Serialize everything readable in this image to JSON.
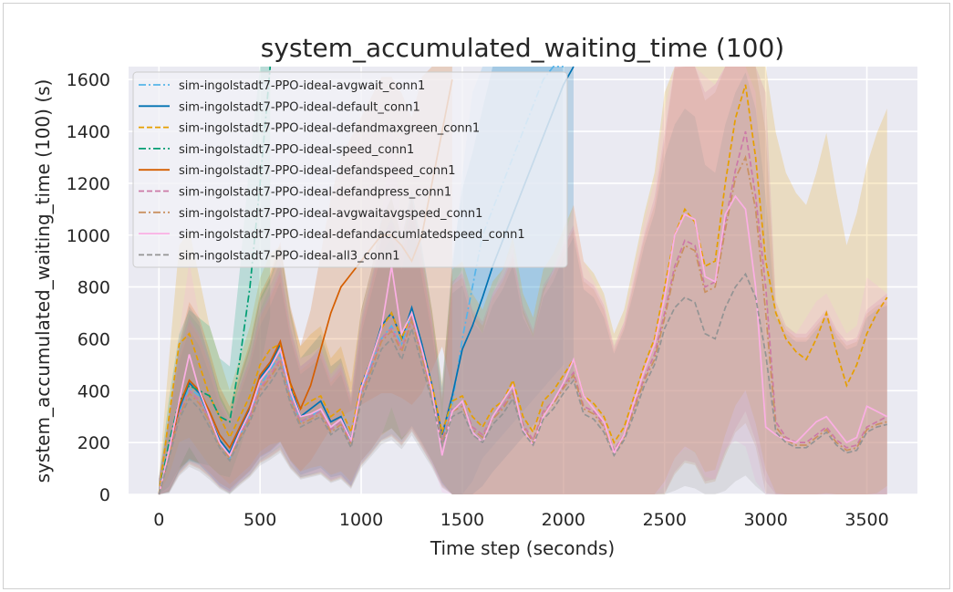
{
  "chart_data": {
    "type": "line",
    "title": "system_accumulated_waiting_time (100)",
    "xlabel": "Time step (seconds)",
    "ylabel": "system_accumulated_waiting_time (100) (s)",
    "xlim": [
      -150,
      3750
    ],
    "ylim": [
      0,
      1650
    ],
    "xticks": [
      0,
      500,
      1000,
      1500,
      2000,
      2500,
      3000,
      3500
    ],
    "yticks": [
      0,
      200,
      400,
      600,
      800,
      1000,
      1200,
      1400,
      1600
    ],
    "grid": true,
    "legend_position": "top-left",
    "series": [
      {
        "name": "sim-ingolstadt7-PPO-ideal-avgwait_conn1",
        "color": "#56b4e9",
        "dash": "dashdot",
        "x": [
          0,
          50,
          100,
          150,
          200,
          250,
          300,
          350,
          400,
          450,
          500,
          550,
          600,
          650,
          700,
          750,
          800,
          850,
          900,
          950,
          1000,
          1050,
          1100,
          1150,
          1200,
          1250,
          1300,
          1350,
          1400,
          1450,
          1500,
          1550,
          1600,
          1650,
          1700,
          1750,
          1800,
          1850,
          1900,
          1950,
          2000
        ],
        "y": [
          0,
          150,
          320,
          410,
          380,
          300,
          200,
          140,
          230,
          300,
          420,
          480,
          540,
          380,
          280,
          300,
          330,
          260,
          290,
          200,
          400,
          500,
          600,
          650,
          580,
          700,
          560,
          400,
          220,
          350,
          600,
          800,
          1000,
          1100,
          1200,
          1300,
          1400,
          1500,
          1600,
          1700,
          1800
        ]
      },
      {
        "name": "sim-ingolstadt7-PPO-ideal-default_conn1",
        "color": "#0072b2",
        "dash": "solid",
        "x": [
          0,
          50,
          100,
          150,
          200,
          250,
          300,
          350,
          400,
          450,
          500,
          550,
          600,
          650,
          700,
          750,
          800,
          850,
          900,
          950,
          1000,
          1050,
          1100,
          1150,
          1200,
          1250,
          1300,
          1350,
          1400,
          1450,
          1500,
          1550,
          1600,
          1650,
          1700,
          1750,
          1800,
          1850,
          1900,
          1950,
          2000,
          2050
        ],
        "y": [
          0,
          160,
          330,
          430,
          390,
          300,
          210,
          160,
          250,
          330,
          450,
          500,
          580,
          420,
          300,
          330,
          360,
          280,
          300,
          210,
          420,
          520,
          650,
          700,
          600,
          720,
          580,
          420,
          230,
          380,
          560,
          650,
          760,
          880,
          980,
          1080,
          1180,
          1280,
          1380,
          1480,
          1580,
          1680
        ]
      },
      {
        "name": "sim-ingolstadt7-PPO-ideal-defandmaxgreen_conn1",
        "color": "#e69f00",
        "dash": "dashed",
        "x": [
          0,
          50,
          100,
          150,
          200,
          250,
          300,
          350,
          400,
          450,
          500,
          550,
          600,
          650,
          700,
          750,
          800,
          850,
          900,
          950,
          1000,
          1050,
          1100,
          1150,
          1200,
          1250,
          1300,
          1350,
          1400,
          1450,
          1500,
          1550,
          1600,
          1650,
          1700,
          1750,
          1800,
          1850,
          1900,
          1950,
          2000,
          2050,
          2100,
          2150,
          2200,
          2250,
          2300,
          2350,
          2400,
          2450,
          2500,
          2550,
          2600,
          2650,
          2700,
          2750,
          2800,
          2850,
          2900,
          2950,
          3000,
          3050,
          3100,
          3150,
          3200,
          3250,
          3300,
          3350,
          3400,
          3450,
          3500,
          3550,
          3600
        ],
        "y": [
          0,
          300,
          580,
          620,
          500,
          380,
          300,
          220,
          300,
          380,
          500,
          560,
          580,
          420,
          330,
          360,
          380,
          300,
          330,
          240,
          420,
          520,
          640,
          700,
          600,
          700,
          560,
          420,
          240,
          360,
          380,
          300,
          260,
          330,
          360,
          440,
          300,
          240,
          360,
          400,
          460,
          520,
          380,
          350,
          300,
          200,
          260,
          380,
          500,
          600,
          800,
          1000,
          1100,
          1050,
          880,
          900,
          1200,
          1450,
          1580,
          1300,
          900,
          700,
          600,
          550,
          520,
          600,
          700,
          550,
          420,
          500,
          620,
          700,
          760
        ]
      },
      {
        "name": "sim-ingolstadt7-PPO-ideal-speed_conn1",
        "color": "#009e73",
        "dash": "dashdot",
        "x": [
          0,
          50,
          100,
          150,
          200,
          250,
          300,
          350,
          400,
          450,
          500,
          550
        ],
        "y": [
          0,
          200,
          360,
          420,
          400,
          380,
          300,
          280,
          520,
          800,
          1200,
          1650
        ]
      },
      {
        "name": "sim-ingolstadt7-PPO-ideal-defandspeed_conn1",
        "color": "#d55e00",
        "dash": "solid",
        "x": [
          0,
          50,
          100,
          150,
          200,
          250,
          300,
          350,
          400,
          450,
          500,
          550,
          600,
          650,
          700,
          750,
          800,
          850,
          900,
          950,
          1000,
          1050,
          1100,
          1150,
          1200,
          1250,
          1300,
          1350,
          1400,
          1450
        ],
        "y": [
          0,
          160,
          340,
          440,
          400,
          320,
          230,
          180,
          260,
          340,
          460,
          510,
          590,
          430,
          330,
          420,
          560,
          700,
          800,
          850,
          900,
          950,
          1000,
          1000,
          960,
          900,
          1000,
          1200,
          1400,
          1600
        ]
      },
      {
        "name": "sim-ingolstadt7-PPO-ideal-defandpress_conn1",
        "color": "#cc79a7",
        "dash": "dashed",
        "x": [
          0,
          50,
          100,
          150,
          200,
          250,
          300,
          350,
          400,
          450,
          500,
          550,
          600,
          650,
          700,
          750,
          800,
          850,
          900,
          950,
          1000,
          1050,
          1100,
          1150,
          1200,
          1250,
          1300,
          1350,
          1400,
          1450,
          1500,
          1550,
          1600,
          1650,
          1700,
          1750,
          1800,
          1850,
          1900,
          1950,
          2000,
          2050,
          2100,
          2150,
          2200,
          2250,
          2300,
          2350,
          2400,
          2450,
          2500,
          2550,
          2600,
          2650,
          2700,
          2750,
          2800,
          2850,
          2900,
          2950,
          3000,
          3050,
          3100,
          3150,
          3200,
          3250,
          3300,
          3350,
          3400,
          3450,
          3500,
          3550,
          3600
        ],
        "y": [
          0,
          150,
          310,
          400,
          360,
          290,
          200,
          150,
          230,
          300,
          410,
          460,
          520,
          370,
          280,
          300,
          320,
          250,
          280,
          200,
          390,
          490,
          600,
          640,
          560,
          680,
          540,
          390,
          210,
          330,
          350,
          260,
          230,
          300,
          340,
          400,
          270,
          210,
          320,
          360,
          420,
          470,
          340,
          320,
          270,
          170,
          230,
          340,
          450,
          540,
          700,
          880,
          980,
          960,
          800,
          820,
          1050,
          1250,
          1400,
          1150,
          800,
          280,
          220,
          200,
          200,
          230,
          260,
          210,
          180,
          190,
          260,
          280,
          300
        ]
      },
      {
        "name": "sim-ingolstadt7-PPO-ideal-avgwaitavgspeed_conn1",
        "color": "#ca9161",
        "dash": "dashdot",
        "x": [
          0,
          50,
          100,
          150,
          200,
          250,
          300,
          350,
          400,
          450,
          500,
          550,
          600,
          650,
          700,
          750,
          800,
          850,
          900,
          950,
          1000,
          1050,
          1100,
          1150,
          1200,
          1250,
          1300,
          1350,
          1400,
          1450,
          1500,
          1550,
          1600,
          1650,
          1700,
          1750,
          1800,
          1850,
          1900,
          1950,
          2000,
          2050,
          2100,
          2150,
          2200,
          2250,
          2300,
          2350,
          2400,
          2450,
          2500,
          2550,
          2600,
          2650,
          2700,
          2750,
          2800,
          2850,
          2900,
          2950,
          3000,
          3050,
          3100,
          3150,
          3200,
          3250,
          3300,
          3350,
          3400,
          3450,
          3500,
          3550,
          3600
        ],
        "y": [
          0,
          150,
          300,
          390,
          350,
          280,
          190,
          140,
          220,
          290,
          400,
          450,
          510,
          360,
          270,
          290,
          310,
          240,
          270,
          190,
          380,
          480,
          590,
          630,
          550,
          670,
          530,
          380,
          200,
          320,
          340,
          250,
          220,
          290,
          330,
          390,
          260,
          200,
          310,
          350,
          410,
          460,
          330,
          310,
          260,
          160,
          220,
          330,
          440,
          520,
          680,
          860,
          960,
          940,
          780,
          800,
          1020,
          1220,
          1300,
          1100,
          700,
          260,
          210,
          190,
          190,
          220,
          250,
          200,
          170,
          180,
          250,
          270,
          280
        ]
      },
      {
        "name": "sim-ingolstadt7-PPO-ideal-defandaccumlatedspeed_conn1",
        "color": "#fbafe4",
        "dash": "solid",
        "x": [
          0,
          50,
          100,
          150,
          200,
          250,
          300,
          350,
          400,
          450,
          500,
          550,
          600,
          650,
          700,
          750,
          800,
          850,
          900,
          950,
          1000,
          1050,
          1100,
          1150,
          1200,
          1250,
          1300,
          1350,
          1400,
          1450,
          1500,
          1550,
          1600,
          1650,
          1700,
          1750,
          1800,
          1850,
          1900,
          1950,
          2000,
          2050,
          2100,
          2150,
          2200,
          2250,
          2300,
          2350,
          2400,
          2450,
          2500,
          2550,
          2600,
          2650,
          2700,
          2750,
          2800,
          2850,
          2900,
          2950,
          3000,
          3050,
          3100,
          3150,
          3200,
          3250,
          3300,
          3350,
          3400,
          3450,
          3500,
          3550,
          3600
        ],
        "y": [
          0,
          170,
          360,
          540,
          400,
          300,
          200,
          150,
          240,
          320,
          440,
          490,
          560,
          400,
          300,
          310,
          330,
          260,
          290,
          210,
          410,
          520,
          640,
          880,
          620,
          700,
          560,
          400,
          150,
          320,
          360,
          240,
          200,
          300,
          360,
          420,
          250,
          190,
          300,
          360,
          430,
          520,
          380,
          330,
          280,
          160,
          230,
          360,
          480,
          580,
          760,
          1000,
          1080,
          1060,
          840,
          820,
          1080,
          1150,
          1100,
          800,
          260,
          230,
          210,
          200,
          240,
          280,
          300,
          250,
          200,
          220,
          340,
          320,
          300
        ]
      },
      {
        "name": "sim-ingolstadt7-PPO-ideal-all3_conn1",
        "color": "#949494",
        "dash": "dashed",
        "x": [
          0,
          50,
          100,
          150,
          200,
          250,
          300,
          350,
          400,
          450,
          500,
          550,
          600,
          650,
          700,
          750,
          800,
          850,
          900,
          950,
          1000,
          1050,
          1100,
          1150,
          1200,
          1250,
          1300,
          1350,
          1400,
          1450,
          1500,
          1550,
          1600,
          1650,
          1700,
          1750,
          1800,
          1850,
          1900,
          1950,
          2000,
          2050,
          2100,
          2150,
          2200,
          2250,
          2300,
          2350,
          2400,
          2450,
          2500,
          2550,
          2600,
          2650,
          2700,
          2750,
          2800,
          2850,
          2900,
          2950,
          3000,
          3050,
          3100,
          3150,
          3200,
          3250,
          3300,
          3350,
          3400,
          3450,
          3500,
          3550,
          3600
        ],
        "y": [
          0,
          140,
          290,
          370,
          330,
          260,
          180,
          130,
          210,
          280,
          380,
          430,
          490,
          350,
          260,
          280,
          300,
          230,
          260,
          180,
          360,
          460,
          560,
          600,
          520,
          640,
          500,
          360,
          190,
          300,
          320,
          230,
          200,
          270,
          310,
          370,
          240,
          190,
          290,
          330,
          390,
          440,
          310,
          290,
          240,
          150,
          210,
          310,
          420,
          500,
          640,
          720,
          760,
          740,
          620,
          600,
          720,
          800,
          850,
          760,
          540,
          240,
          200,
          180,
          180,
          210,
          240,
          190,
          160,
          170,
          240,
          260,
          270
        ]
      }
    ]
  }
}
